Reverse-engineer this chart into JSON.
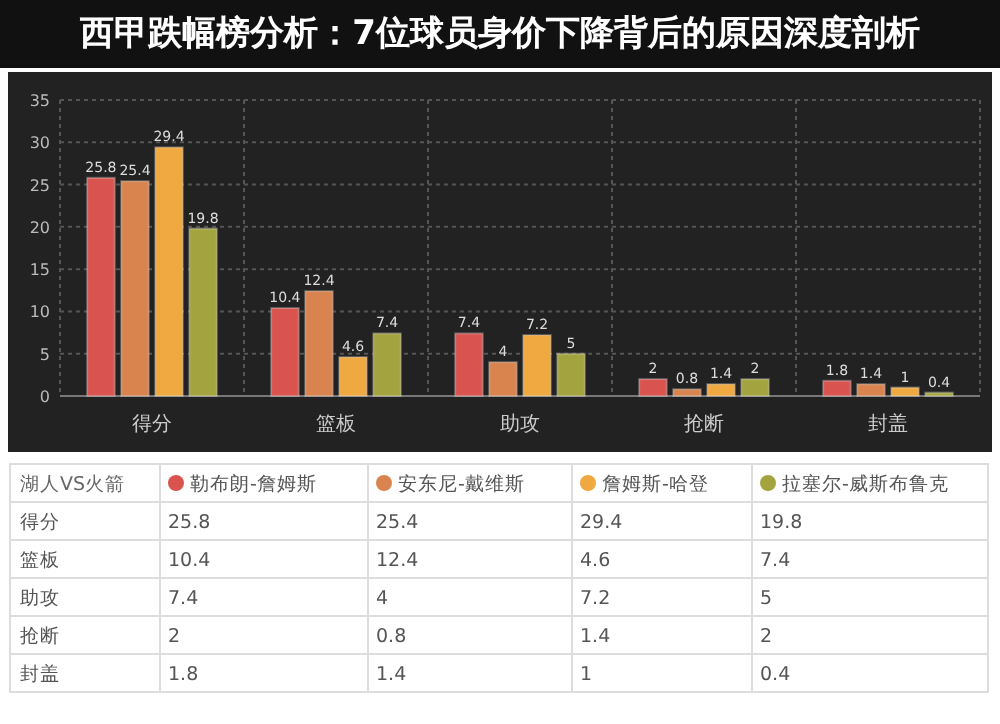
{
  "chart_data": [
    {
      "type": "bar",
      "title": "西甲跌幅榜分析：7位球员身价下降背后的原因深度剖析",
      "categories": [
        "得分",
        "篮板",
        "助攻",
        "抢断",
        "封盖"
      ],
      "series": [
        {
          "color": "#d9534f",
          "values": [
            25.8,
            10.4,
            7.4,
            2,
            1.8
          ]
        },
        {
          "color": "#d9844f",
          "values": [
            25.4,
            12.4,
            4,
            0.8,
            1.4
          ]
        },
        {
          "color": "#f0a840",
          "values": [
            29.4,
            4.6,
            7.2,
            1.4,
            1
          ]
        },
        {
          "color": "#a3a33f",
          "values": [
            19.8,
            7.4,
            5,
            2,
            0.4
          ]
        }
      ],
      "ylim": [
        0,
        35
      ],
      "yticks": [
        0,
        5,
        10,
        15,
        20,
        25,
        30,
        35
      ],
      "grid": true,
      "data_labels": true
    },
    {
      "type": "other",
      "legend_title": "湖人VS火箭",
      "categories": [
        "得分",
        "篮板",
        "助攻",
        "抢断",
        "封盖"
      ],
      "series": [
        {
          "name": "勒布朗-詹姆斯",
          "color": "#d9534f",
          "values": [
            25.8,
            10.4,
            7.4,
            2,
            1.8
          ]
        },
        {
          "name": "安东尼-戴维斯",
          "color": "#d9844f",
          "values": [
            25.4,
            12.4,
            4,
            0.8,
            1.4
          ]
        },
        {
          "name": "詹姆斯-哈登",
          "color": "#f0a840",
          "values": [
            29.4,
            4.6,
            7.2,
            1.4,
            1
          ]
        },
        {
          "name": "拉塞尔-威斯布鲁克",
          "color": "#a3a33f",
          "values": [
            19.8,
            7.4,
            5,
            2,
            0.4
          ]
        }
      ],
      "data_labels": true,
      "legend": "top"
    }
  ]
}
